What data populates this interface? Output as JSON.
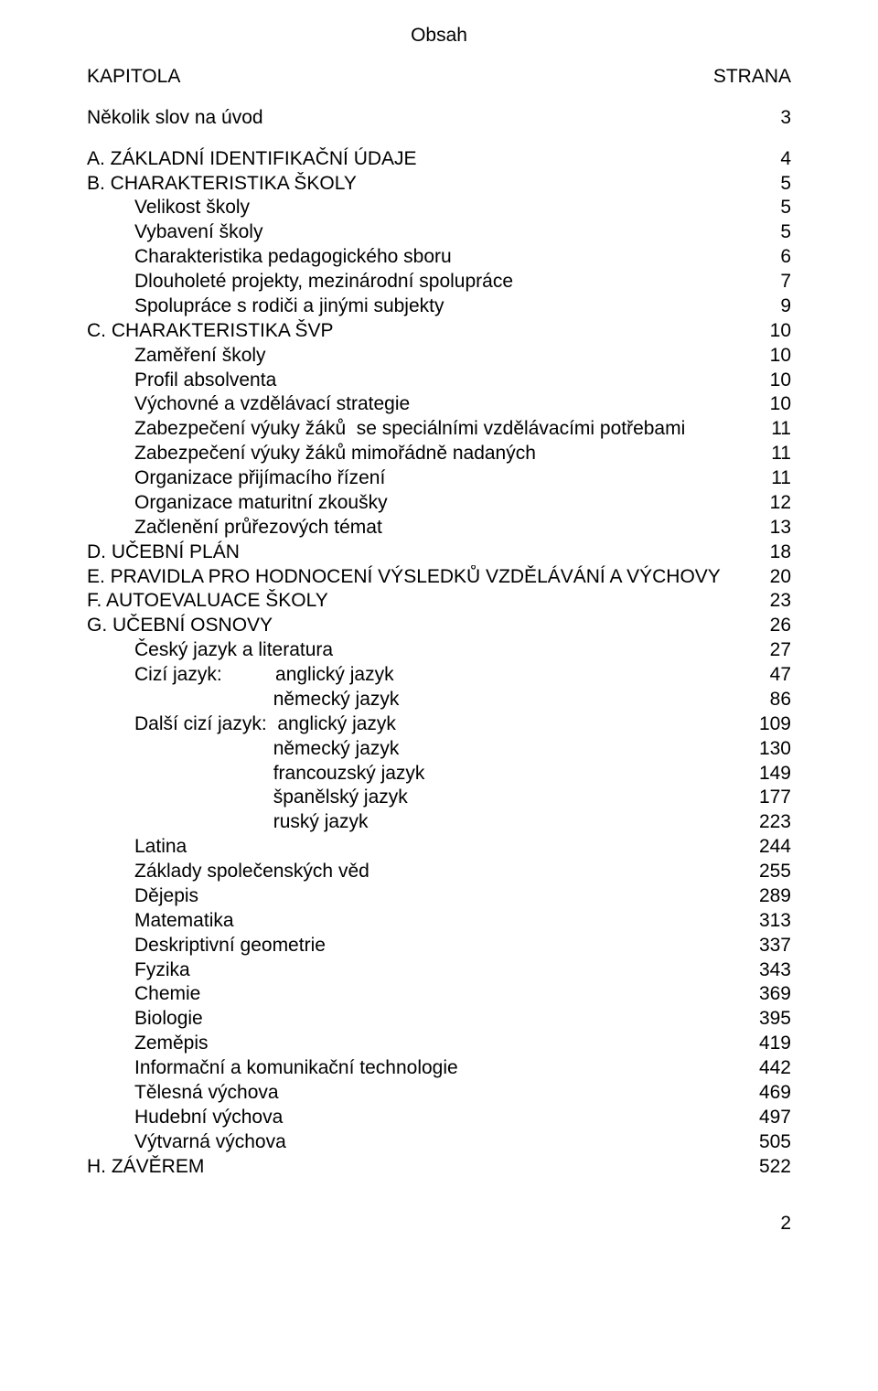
{
  "title": "Obsah",
  "hdr_left": "KAPITOLA",
  "hdr_right": "STRANA",
  "intro_label": "Několik slov na úvod",
  "intro_page": "3",
  "page_number": "2",
  "rows": [
    {
      "text": "A. ZÁKLADNÍ IDENTIFIKAČNÍ ÚDAJE",
      "page": "4",
      "indent": 0
    },
    {
      "text": "B. CHARAKTERISTIKA ŠKOLY",
      "page": "5",
      "indent": 0
    },
    {
      "text": "Velikost školy",
      "page": "5",
      "indent": 1
    },
    {
      "text": "Vybavení školy",
      "page": "5",
      "indent": 1
    },
    {
      "text": "Charakteristika pedagogického sboru",
      "page": "6",
      "indent": 1
    },
    {
      "text": "Dlouholeté projekty, mezinárodní spolupráce",
      "page": "7",
      "indent": 1
    },
    {
      "text": "Spolupráce s rodiči a jinými subjekty",
      "page": "9",
      "indent": 1
    },
    {
      "text": "C. CHARAKTERISTIKA ŠVP",
      "page": "10",
      "indent": 0
    },
    {
      "text": "Zaměření školy",
      "page": "10",
      "indent": 1
    },
    {
      "text": "Profil absolventa",
      "page": "10",
      "indent": 1
    },
    {
      "text": "Výchovné a vzdělávací strategie",
      "page": "10",
      "indent": 1
    },
    {
      "text": "Zabezpečení výuky žáků  se speciálními vzdělávacími potřebami",
      "page": "11",
      "indent": 1
    },
    {
      "text": "Zabezpečení výuky žáků mimořádně nadaných",
      "page": "11",
      "indent": 1
    },
    {
      "text": "Organizace přijímacího řízení",
      "page": "11",
      "indent": 1
    },
    {
      "text": "Organizace maturitní zkoušky",
      "page": "12",
      "indent": 1
    },
    {
      "text": "Začlenění průřezových témat",
      "page": "13",
      "indent": 1
    },
    {
      "text": "D. UČEBNÍ PLÁN",
      "page": "18",
      "indent": 0
    },
    {
      "text": "E. PRAVIDLA PRO HODNOCENÍ VÝSLEDKŮ VZDĚLÁVÁNÍ A VÝCHOVY",
      "page": "20",
      "indent": 0
    },
    {
      "text": "F. AUTOEVALUACE ŠKOLY",
      "page": "23",
      "indent": 0
    },
    {
      "text": "G. UČEBNÍ OSNOVY",
      "page": "26",
      "indent": 0
    },
    {
      "text": "Český jazyk a literatura",
      "page": "27",
      "indent": 1
    },
    {
      "text": "Cizí jazyk:          anglický jazyk",
      "page": "47",
      "indent": 1
    },
    {
      "text": "                          německý jazyk",
      "page": "86",
      "indent": 1
    },
    {
      "text": "Další cizí jazyk:  anglický jazyk",
      "page": "109",
      "indent": 1
    },
    {
      "text": "                          německý jazyk",
      "page": "130",
      "indent": 1
    },
    {
      "text": "                          francouzský jazyk",
      "page": "149",
      "indent": 1
    },
    {
      "text": "                          španělský jazyk",
      "page": "177",
      "indent": 1
    },
    {
      "text": "                          ruský jazyk",
      "page": "223",
      "indent": 1
    },
    {
      "text": "Latina",
      "page": "244",
      "indent": 1
    },
    {
      "text": "Základy společenských věd",
      "page": "255",
      "indent": 1
    },
    {
      "text": "Dějepis",
      "page": "289",
      "indent": 1
    },
    {
      "text": "Matematika",
      "page": "313",
      "indent": 1
    },
    {
      "text": "Deskriptivní geometrie",
      "page": "337",
      "indent": 1
    },
    {
      "text": "Fyzika",
      "page": "343",
      "indent": 1
    },
    {
      "text": "Chemie",
      "page": "369",
      "indent": 1
    },
    {
      "text": "Biologie",
      "page": "395",
      "indent": 1
    },
    {
      "text": "Zeměpis",
      "page": "419",
      "indent": 1
    },
    {
      "text": "Informační a komunikační technologie",
      "page": "442",
      "indent": 1
    },
    {
      "text": "Tělesná výchova",
      "page": "469",
      "indent": 1
    },
    {
      "text": "Hudební výchova",
      "page": "497",
      "indent": 1
    },
    {
      "text": "Výtvarná výchova",
      "page": "505",
      "indent": 1
    },
    {
      "text": "H. ZÁVĚREM",
      "page": "522",
      "indent": 0
    }
  ]
}
